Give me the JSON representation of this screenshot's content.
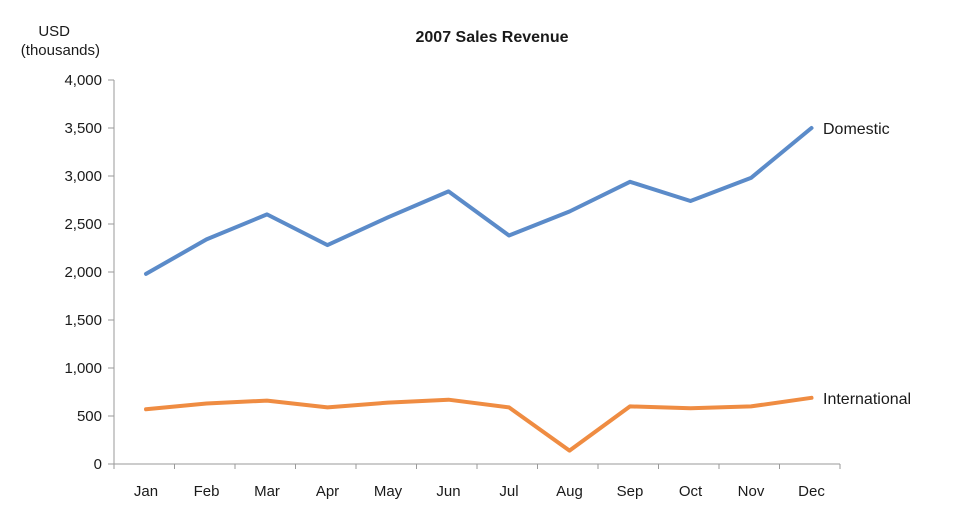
{
  "chart_data": {
    "type": "line",
    "title": "2007 Sales Revenue",
    "ylabel_line1": "USD",
    "ylabel_line2": "(thousands)",
    "xlabel": "",
    "categories": [
      "Jan",
      "Feb",
      "Mar",
      "Apr",
      "May",
      "Jun",
      "Jul",
      "Aug",
      "Sep",
      "Oct",
      "Nov",
      "Dec"
    ],
    "ylim": [
      0,
      4000
    ],
    "yticks": [
      0,
      500,
      1000,
      1500,
      2000,
      2500,
      3000,
      3500,
      4000
    ],
    "ytick_labels": [
      "0",
      "500",
      "1,000",
      "1,500",
      "2,000",
      "2,500",
      "3,000",
      "3,500",
      "4,000"
    ],
    "grid": false,
    "legend": "inline labels at line ends",
    "series": [
      {
        "name": "Domestic",
        "color": "#5b8bc9",
        "values": [
          1980,
          2340,
          2600,
          2280,
          2570,
          2840,
          2380,
          2630,
          2940,
          2740,
          2980,
          3500
        ]
      },
      {
        "name": "International",
        "color": "#ef8c42",
        "values": [
          570,
          630,
          660,
          590,
          640,
          670,
          590,
          140,
          600,
          580,
          600,
          690
        ]
      }
    ]
  }
}
